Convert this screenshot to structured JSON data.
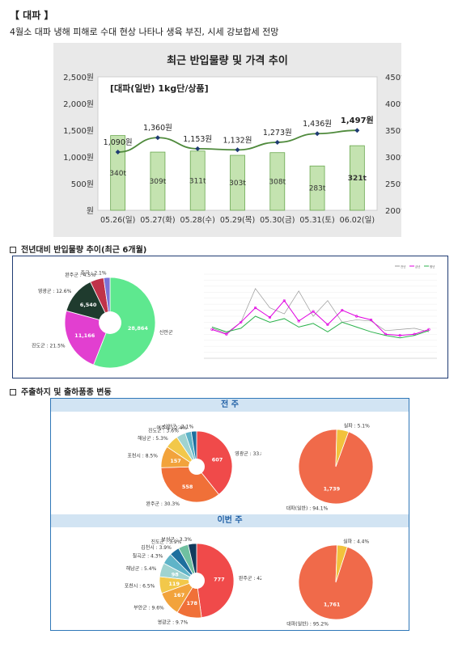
{
  "header": {
    "title": "【 대파 】",
    "subtitle": "4월소 대파 냉해 피해로 수대 현상 나타나 생육 부진, 시세 강보합세 전망"
  },
  "chart1": {
    "title": "최근 반입물량 및 가격 추이",
    "inner_label": "[대파(일반) 1kg단/상품]",
    "left_axis_ticks": [
      "2,500원",
      "2,000원",
      "1,500원",
      "1,000원",
      "500원",
      "원"
    ],
    "right_axis_ticks": [
      "450t",
      "400t",
      "350t",
      "300t",
      "250t",
      "200t"
    ],
    "price_labels": [
      "1,090원",
      "1,360원",
      "1,153원",
      "1,132원",
      "1,273원",
      "1,436원",
      "1,497원"
    ],
    "volume_labels": [
      "340t",
      "309t",
      "311t",
      "303t",
      "308t",
      "283t",
      "321t"
    ]
  },
  "chart_data": [
    {
      "type": "bar+line",
      "title": "최근 반입물량 및 가격 추이",
      "subtitle": "[대파(일반) 1kg단/상품]",
      "categories": [
        "05.26(일)",
        "05.27(화)",
        "05.28(수)",
        "05.29(목)",
        "05.30(금)",
        "05.31(토)",
        "06.02(일)"
      ],
      "series": [
        {
          "name": "price_won",
          "kind": "line",
          "axis": "left",
          "values": [
            1090,
            1360,
            1153,
            1132,
            1273,
            1436,
            1497
          ]
        },
        {
          "name": "volume_t",
          "kind": "bar",
          "axis": "right",
          "values": [
            340,
            309,
            311,
            303,
            308,
            283,
            321
          ]
        }
      ],
      "ylim_left": [
        0,
        2500
      ],
      "ylim_right": [
        200,
        450
      ]
    },
    {
      "type": "pie",
      "labels": [
        "신안군",
        "진도군",
        "영광군",
        "완주군",
        "중국"
      ],
      "values": [
        51.7,
        21.5,
        12.6,
        4.5,
        2.1
      ],
      "value_labels": [
        "28,864",
        "11,166",
        "6,540",
        "",
        ""
      ],
      "slice_labels": [
        "신안군 : 51.7%",
        "진도군 : 21.5%",
        "영광군 : 12.6%",
        "완주군 : 4.5%",
        "중국 : 2.1%"
      ]
    },
    {
      "type": "line",
      "legend": [
        "전년",
        "금년",
        "평년"
      ],
      "colors": [
        "#999999",
        "#e000e0",
        "#2bb24c"
      ],
      "series": [
        {
          "name": "전년",
          "values": [
            250,
            210,
            300,
            580,
            420,
            370,
            560,
            350,
            480,
            300,
            320,
            310,
            230,
            240,
            250,
            220
          ]
        },
        {
          "name": "금년",
          "values": [
            240,
            200,
            300,
            420,
            340,
            480,
            310,
            390,
            280,
            400,
            350,
            320,
            200,
            190,
            200,
            240
          ]
        },
        {
          "name": "평년",
          "values": [
            260,
            220,
            250,
            350,
            300,
            330,
            260,
            290,
            220,
            300,
            260,
            220,
            190,
            170,
            190,
            230
          ]
        }
      ],
      "ylim": [
        0,
        700
      ]
    },
    {
      "type": "pie",
      "title": "전 주",
      "labels": [
        "영광군",
        "완주군",
        "포천시",
        "해남군",
        "진도군",
        "여주시",
        "신안군"
      ],
      "values": [
        33.8,
        30.3,
        8.5,
        5.3,
        3.6,
        2.4,
        2.1
      ],
      "value_labels": [
        "607",
        "558",
        "157",
        "",
        "",
        "",
        ""
      ],
      "slice_labels": [
        "영광군 : 33.8%",
        "완주군 : 30.3%",
        "포천시 : 8.5%",
        "해남군 : 5.3%",
        "진도군 : 3.6%",
        "여주시 : 2.4%",
        "신안군 : 2.1%"
      ]
    },
    {
      "type": "pie",
      "title": "전 주",
      "labels": [
        "대파(일반)",
        "실파"
      ],
      "values": [
        94.1,
        5.1
      ],
      "value_labels": [
        "1,739",
        ""
      ],
      "slice_labels": [
        "대파(일반) : 94.1%",
        "실파 : 5.1%"
      ]
    },
    {
      "type": "pie",
      "title": "이번 주",
      "labels": [
        "완주군",
        "영광군",
        "부안군",
        "포천시",
        "해남군",
        "칠곡군",
        "김천시",
        "진도군",
        "보성군"
      ],
      "values": [
        42.8,
        9.7,
        9.6,
        6.5,
        5.4,
        4.3,
        3.9,
        3.9,
        3.3
      ],
      "value_labels": [
        "777",
        "178",
        "167",
        "119",
        "98",
        "",
        "",
        "",
        ""
      ],
      "slice_labels": [
        "완주군 : 42.8%",
        "영광군 : 9.7%",
        "부안군 : 9.6%",
        "포천시 : 6.5%",
        "해남군 : 5.4%",
        "칠곡군 : 4.3%",
        "김천시 : 3.9%",
        "진도군 : 3.9%",
        "보성군 : 3.3%"
      ]
    },
    {
      "type": "pie",
      "title": "이번 주",
      "labels": [
        "대파(일반)",
        "실파"
      ],
      "values": [
        95.2,
        4.4
      ],
      "value_labels": [
        "1,761",
        ""
      ],
      "slice_labels": [
        "대파(일반) : 95.2%",
        "실파 : 4.4%"
      ]
    }
  ],
  "section2": {
    "title": "전년대비 반입물량 추이(최근 6개월)"
  },
  "section3": {
    "title": "주출하지 및 출하품종 변동",
    "band1": "전 주",
    "band2": "이번 주"
  },
  "colors": {
    "bar": "#c4e3b0",
    "bar_edge": "#6aa84f",
    "line": "#4f8a3c",
    "point": "#1f3b73",
    "box_border_dark": "#1f3b73",
    "box_border_light": "#2f77b8",
    "pie_big": "#f06a4a"
  }
}
